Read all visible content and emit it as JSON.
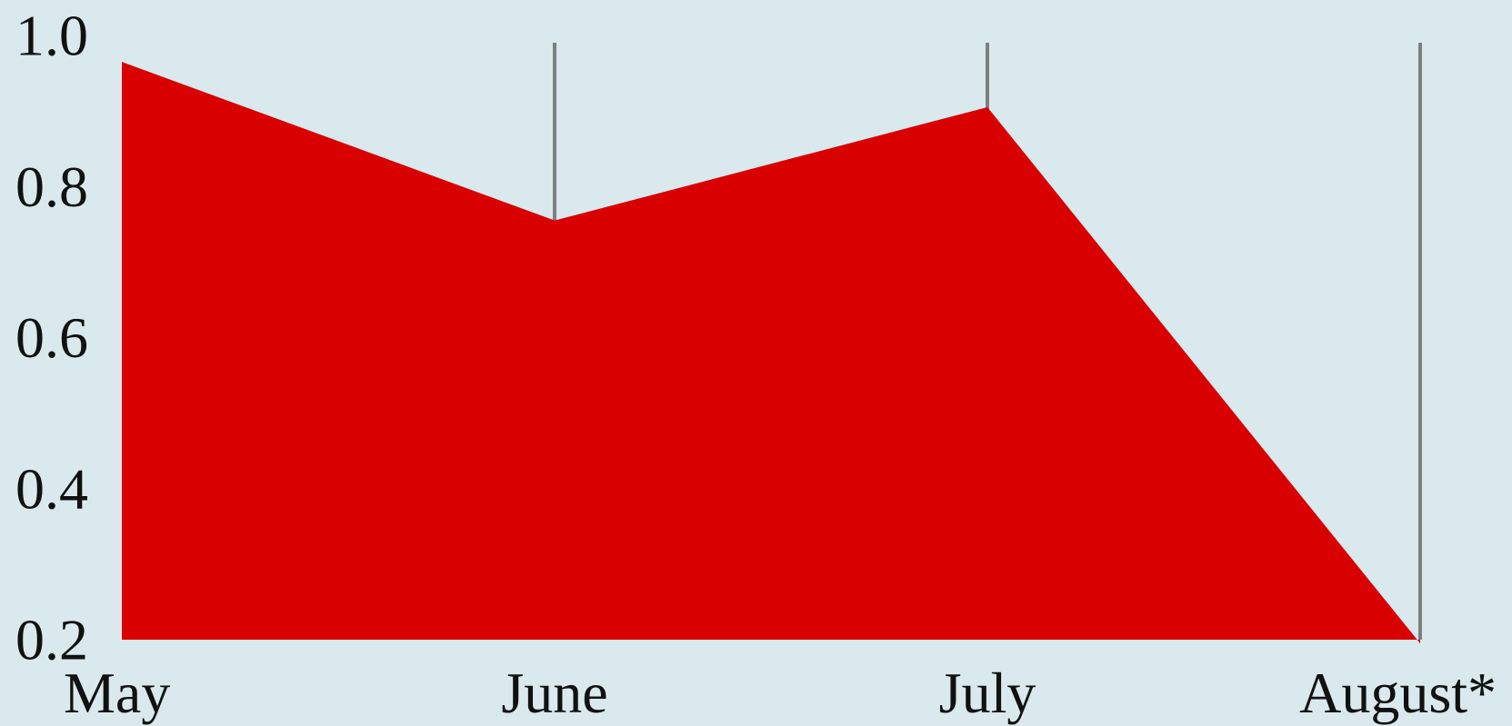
{
  "chart_data": {
    "type": "area",
    "categories": [
      "May",
      "June",
      "July",
      "August*"
    ],
    "series": [
      {
        "values": [
          0.965,
          0.755,
          0.905,
          0.195
        ]
      }
    ],
    "ylim": [
      0.2,
      1.0
    ],
    "yticks": [
      "0.2",
      "0.4",
      "0.6",
      "0.8",
      "1.0"
    ],
    "grid": "vertical-lines-at-categories",
    "colors": {
      "background": "#d9e9ee",
      "area": "#d80000",
      "grid": "#7f7f7f",
      "text": "#111111"
    }
  }
}
